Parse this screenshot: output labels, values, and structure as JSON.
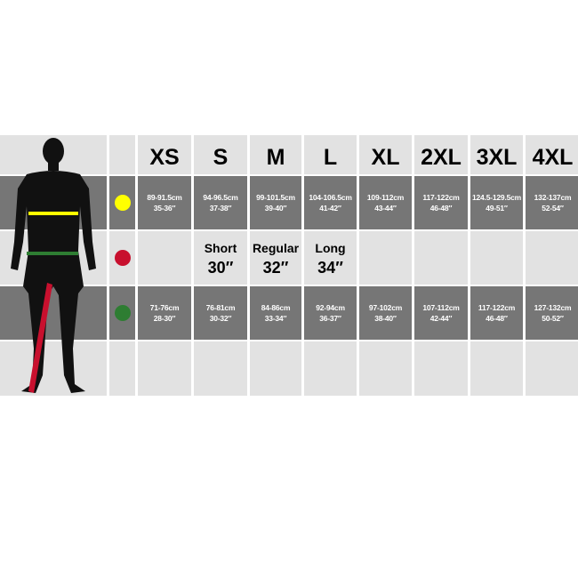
{
  "sizes": [
    "XS",
    "S",
    "M",
    "L",
    "XL",
    "2XL",
    "3XL",
    "4XL"
  ],
  "colors": {
    "chest": "#ffff00",
    "inside_leg": "#c8102e",
    "waist": "#2e7d32",
    "dark_row": "#767676",
    "light_row": "#e2e2e2"
  },
  "chest": [
    {
      "cm": "89-91.5cm",
      "in": "35-36″"
    },
    {
      "cm": "94-96.5cm",
      "in": "37-38″"
    },
    {
      "cm": "99-101.5cm",
      "in": "39-40″"
    },
    {
      "cm": "104-106.5cm",
      "in": "41-42″"
    },
    {
      "cm": "109-112cm",
      "in": "43-44″"
    },
    {
      "cm": "117-122cm",
      "in": "46-48″"
    },
    {
      "cm": "124.5-129.5cm",
      "in": "49-51″"
    },
    {
      "cm": "132-137cm",
      "in": "52-54″"
    }
  ],
  "leg": [
    {
      "label": "Short",
      "value": "30″"
    },
    {
      "label": "Regular",
      "value": "32″"
    },
    {
      "label": "Long",
      "value": "34″"
    }
  ],
  "waist": [
    {
      "cm": "71-76cm",
      "in": "28-30″"
    },
    {
      "cm": "76-81cm",
      "in": "30-32″"
    },
    {
      "cm": "84-86cm",
      "in": "33-34″"
    },
    {
      "cm": "92-94cm",
      "in": "36-37″"
    },
    {
      "cm": "97-102cm",
      "in": "38-40″"
    },
    {
      "cm": "107-112cm",
      "in": "42-44″"
    },
    {
      "cm": "117-122cm",
      "in": "46-48″"
    },
    {
      "cm": "127-132cm",
      "in": "50-52″"
    }
  ]
}
